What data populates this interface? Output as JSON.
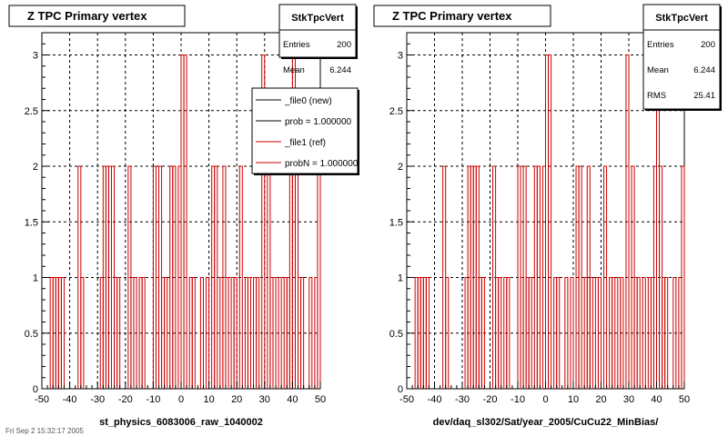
{
  "footer": "Fri Sep 2 15:32:17 2005",
  "chart_data": [
    {
      "type": "bar",
      "title": "Z TPC Primary vertex",
      "xlabel": "st_physics_6083006_raw_1040002",
      "ylabel": "",
      "xlim": [
        -50,
        50
      ],
      "ylim": [
        0,
        3.2
      ],
      "grid": true,
      "x_ticks": [
        "-50",
        "-40",
        "-30",
        "-20",
        "-10",
        "0",
        "10",
        "20",
        "30",
        "40",
        "50"
      ],
      "y_ticks": [
        "0",
        "0.5",
        "1",
        "1.5",
        "2",
        "2.5",
        "3"
      ],
      "stats": {
        "name": "StkTpcVert",
        "rows": [
          {
            "label": "Entries",
            "value": "200"
          },
          {
            "label": "Mean",
            "value": "6.244"
          }
        ]
      },
      "legend": {
        "placement": "top-right",
        "entries": [
          {
            "label": "_file0 (new)",
            "color": "#000000"
          },
          {
            "label": "prob = 1.000000",
            "color": "#000000"
          },
          {
            "label": "_file1 (ref)",
            "color": "#cc0000"
          },
          {
            "label": "probN = 1.000000",
            "color": "#cc0000"
          }
        ]
      },
      "series": [
        {
          "color": "#cc0000",
          "bins": [
            [
              -47,
              1
            ],
            [
              -46,
              1
            ],
            [
              -45,
              1
            ],
            [
              -44,
              1
            ],
            [
              -43,
              1
            ],
            [
              -37,
              2
            ],
            [
              -36,
              1
            ],
            [
              -29,
              1
            ],
            [
              -28,
              2
            ],
            [
              -27,
              2
            ],
            [
              -26,
              2
            ],
            [
              -25,
              2
            ],
            [
              -24,
              1
            ],
            [
              -23,
              1
            ],
            [
              -19,
              2
            ],
            [
              -18,
              1
            ],
            [
              -17,
              1
            ],
            [
              -15,
              1
            ],
            [
              -14,
              1
            ],
            [
              -10,
              2
            ],
            [
              -9,
              1
            ],
            [
              -8,
              2
            ],
            [
              -7,
              1
            ],
            [
              -6,
              1
            ],
            [
              -4,
              2
            ],
            [
              -3,
              2
            ],
            [
              -1,
              2
            ],
            [
              0,
              3
            ],
            [
              1,
              3
            ],
            [
              3,
              1
            ],
            [
              4,
              1
            ],
            [
              7,
              1
            ],
            [
              9,
              1
            ],
            [
              11,
              2
            ],
            [
              12,
              2
            ],
            [
              14,
              1
            ],
            [
              15,
              2
            ],
            [
              16,
              1
            ],
            [
              18,
              1
            ],
            [
              19,
              1
            ],
            [
              21,
              2
            ],
            [
              23,
              1
            ],
            [
              24,
              1
            ],
            [
              26,
              1
            ],
            [
              27,
              1
            ],
            [
              29,
              3
            ],
            [
              31,
              2
            ],
            [
              32,
              1
            ],
            [
              33,
              1
            ],
            [
              35,
              1
            ],
            [
              37,
              1
            ],
            [
              38,
              1
            ],
            [
              39,
              2
            ],
            [
              40,
              3
            ],
            [
              41,
              2
            ],
            [
              42,
              1
            ],
            [
              43,
              1
            ],
            [
              46,
              1
            ],
            [
              48,
              1
            ],
            [
              49,
              2
            ]
          ]
        }
      ]
    },
    {
      "type": "bar",
      "title": "Z TPC Primary vertex",
      "xlabel": "dev/daq_sl302/Sat/year_2005/CuCu22_MinBias/",
      "ylabel": "",
      "xlim": [
        -50,
        50
      ],
      "ylim": [
        0,
        3.2
      ],
      "grid": true,
      "x_ticks": [
        "-50",
        "-40",
        "-30",
        "-20",
        "-10",
        "0",
        "10",
        "20",
        "30",
        "40",
        "50"
      ],
      "y_ticks": [
        "0",
        "0.5",
        "1",
        "1.5",
        "2",
        "2.5",
        "3"
      ],
      "stats": {
        "name": "StkTpcVert",
        "rows": [
          {
            "label": "Entries",
            "value": "200"
          },
          {
            "label": "Mean",
            "value": "6.244"
          },
          {
            "label": "RMS",
            "value": "25.41"
          }
        ]
      },
      "series": [
        {
          "color": "#cc0000",
          "bins": [
            [
              -47,
              1
            ],
            [
              -46,
              1
            ],
            [
              -45,
              1
            ],
            [
              -44,
              1
            ],
            [
              -43,
              1
            ],
            [
              -37,
              2
            ],
            [
              -36,
              1
            ],
            [
              -29,
              1
            ],
            [
              -28,
              2
            ],
            [
              -27,
              2
            ],
            [
              -26,
              2
            ],
            [
              -25,
              2
            ],
            [
              -24,
              1
            ],
            [
              -23,
              1
            ],
            [
              -19,
              2
            ],
            [
              -18,
              1
            ],
            [
              -17,
              1
            ],
            [
              -15,
              1
            ],
            [
              -14,
              1
            ],
            [
              -10,
              2
            ],
            [
              -9,
              1
            ],
            [
              -8,
              2
            ],
            [
              -7,
              1
            ],
            [
              -6,
              1
            ],
            [
              -4,
              2
            ],
            [
              -3,
              2
            ],
            [
              -1,
              2
            ],
            [
              0,
              3
            ],
            [
              1,
              3
            ],
            [
              3,
              1
            ],
            [
              4,
              1
            ],
            [
              7,
              1
            ],
            [
              9,
              1
            ],
            [
              11,
              2
            ],
            [
              12,
              2
            ],
            [
              14,
              1
            ],
            [
              15,
              2
            ],
            [
              16,
              1
            ],
            [
              18,
              1
            ],
            [
              19,
              1
            ],
            [
              21,
              2
            ],
            [
              23,
              1
            ],
            [
              24,
              1
            ],
            [
              26,
              1
            ],
            [
              27,
              1
            ],
            [
              29,
              3
            ],
            [
              31,
              2
            ],
            [
              32,
              1
            ],
            [
              33,
              1
            ],
            [
              35,
              1
            ],
            [
              37,
              1
            ],
            [
              38,
              1
            ],
            [
              39,
              2
            ],
            [
              40,
              3
            ],
            [
              41,
              2
            ],
            [
              42,
              1
            ],
            [
              43,
              1
            ],
            [
              46,
              1
            ],
            [
              48,
              1
            ],
            [
              49,
              2
            ]
          ]
        }
      ]
    }
  ]
}
